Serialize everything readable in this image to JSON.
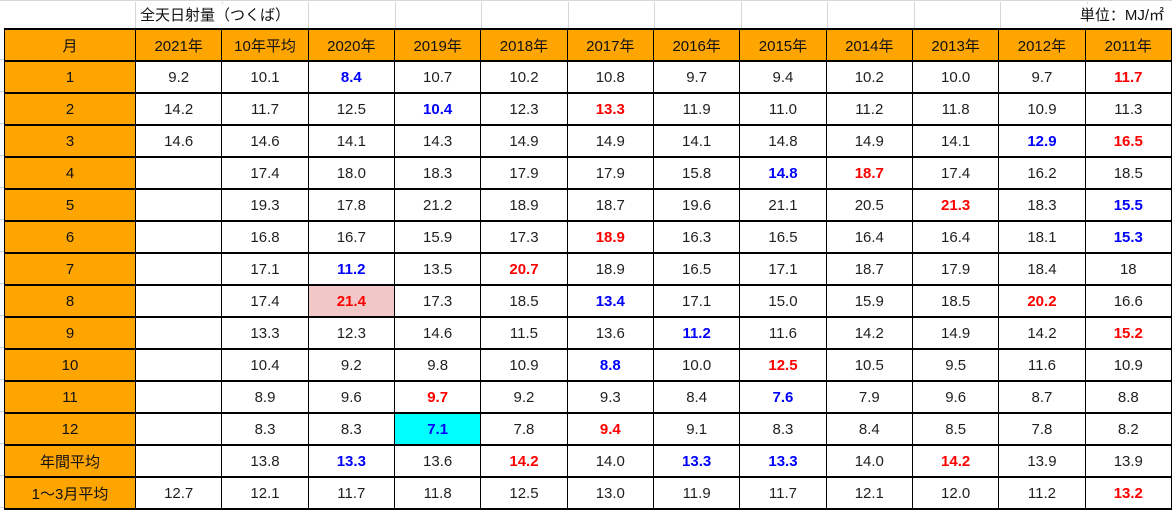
{
  "colors": {
    "header_bg": "#FFA500",
    "min_text": "#0000FF",
    "max_text": "#FF0000",
    "pink_cell_bg": "#F2C7C7",
    "cyan_cell_bg": "#00FFFF",
    "gridline": "#D6D6D6"
  },
  "chart_data": {
    "type": "table",
    "title": "全天日射量（つくば）",
    "unit": "単位：MJ/㎡",
    "columns": [
      "月",
      "2021年",
      "10年平均",
      "2020年",
      "2019年",
      "2018年",
      "2017年",
      "2016年",
      "2015年",
      "2014年",
      "2013年",
      "2012年",
      "2011年"
    ],
    "row_labels": [
      "1",
      "2",
      "3",
      "4",
      "5",
      "6",
      "7",
      "8",
      "9",
      "10",
      "11",
      "12",
      "年間平均",
      "1～3月平均"
    ],
    "highlight_legend": {
      "min": "blue bold (column minimum)",
      "max": "red bold (column maximum)"
    },
    "rows": [
      [
        "9.2",
        "10.1",
        {
          "v": "8.4",
          "c": "min"
        },
        "10.7",
        "10.2",
        "10.8",
        "9.7",
        "9.4",
        "10.2",
        "10.0",
        "9.7",
        {
          "v": "11.7",
          "c": "max"
        }
      ],
      [
        "14.2",
        "11.7",
        "12.5",
        {
          "v": "10.4",
          "c": "min"
        },
        "12.3",
        {
          "v": "13.3",
          "c": "max"
        },
        "11.9",
        "11.0",
        "11.2",
        "11.8",
        "10.9",
        "11.3"
      ],
      [
        "14.6",
        "14.6",
        "14.1",
        "14.3",
        "14.9",
        "14.9",
        "14.1",
        "14.8",
        "14.9",
        "14.1",
        {
          "v": "12.9",
          "c": "min"
        },
        {
          "v": "16.5",
          "c": "max"
        }
      ],
      [
        "",
        "17.4",
        "18.0",
        "18.3",
        "17.9",
        "17.9",
        "15.8",
        {
          "v": "14.8",
          "c": "min"
        },
        {
          "v": "18.7",
          "c": "max"
        },
        "17.4",
        "16.2",
        "18.5"
      ],
      [
        "",
        "19.3",
        "17.8",
        "21.2",
        "18.9",
        "18.7",
        "19.6",
        "21.1",
        "20.5",
        {
          "v": "21.3",
          "c": "max"
        },
        "18.3",
        {
          "v": "15.5",
          "c": "min"
        }
      ],
      [
        "",
        "16.8",
        "16.7",
        "15.9",
        "17.3",
        {
          "v": "18.9",
          "c": "max"
        },
        "16.3",
        "16.5",
        "16.4",
        "16.4",
        "18.1",
        {
          "v": "15.3",
          "c": "min"
        }
      ],
      [
        "",
        "17.1",
        {
          "v": "11.2",
          "c": "min"
        },
        "13.5",
        {
          "v": "20.7",
          "c": "max"
        },
        "18.9",
        "16.5",
        "17.1",
        "18.7",
        "17.9",
        "18.4",
        "18"
      ],
      [
        "",
        "17.4",
        {
          "v": "21.4",
          "c": "max",
          "bg": "pink"
        },
        "17.3",
        "18.5",
        {
          "v": "13.4",
          "c": "min"
        },
        "17.1",
        "15.0",
        "15.9",
        "18.5",
        {
          "v": "20.2",
          "c": "max"
        },
        "16.6"
      ],
      [
        "",
        "13.3",
        "12.3",
        "14.6",
        "11.5",
        "13.6",
        {
          "v": "11.2",
          "c": "min"
        },
        "11.6",
        "14.2",
        "14.9",
        "14.2",
        {
          "v": "15.2",
          "c": "max"
        }
      ],
      [
        "",
        "10.4",
        "9.2",
        "9.8",
        "10.9",
        {
          "v": "8.8",
          "c": "min"
        },
        "10.0",
        {
          "v": "12.5",
          "c": "max"
        },
        "10.5",
        "9.5",
        "11.6",
        "10.9"
      ],
      [
        "",
        "8.9",
        "9.6",
        {
          "v": "9.7",
          "c": "max"
        },
        "9.2",
        "9.3",
        "8.4",
        {
          "v": "7.6",
          "c": "min"
        },
        "7.9",
        "9.6",
        "8.7",
        "8.8"
      ],
      [
        "",
        "8.3",
        "8.3",
        {
          "v": "7.1",
          "c": "min",
          "bg": "cyan"
        },
        "7.8",
        {
          "v": "9.4",
          "c": "max"
        },
        "9.1",
        "8.3",
        "8.4",
        "8.5",
        "7.8",
        "8.2"
      ],
      [
        "",
        "13.8",
        {
          "v": "13.3",
          "c": "min"
        },
        "13.6",
        {
          "v": "14.2",
          "c": "max"
        },
        "14.0",
        {
          "v": "13.3",
          "c": "min"
        },
        {
          "v": "13.3",
          "c": "min"
        },
        "14.0",
        {
          "v": "14.2",
          "c": "max"
        },
        "13.9",
        "13.9"
      ],
      [
        "12.7",
        "12.1",
        "11.7",
        "11.8",
        "12.5",
        "13.0",
        "11.9",
        "11.7",
        "12.1",
        "12.0",
        "11.2",
        {
          "v": "13.2",
          "c": "max"
        }
      ]
    ]
  }
}
